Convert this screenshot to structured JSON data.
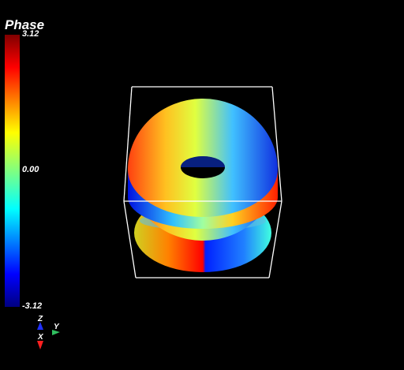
{
  "colorbar": {
    "title": "Phase",
    "max_label": "3.12",
    "mid_label": "0.00",
    "min_label": "-3.12"
  },
  "axes": {
    "x": "X",
    "y": "Y",
    "z": "Z"
  }
}
